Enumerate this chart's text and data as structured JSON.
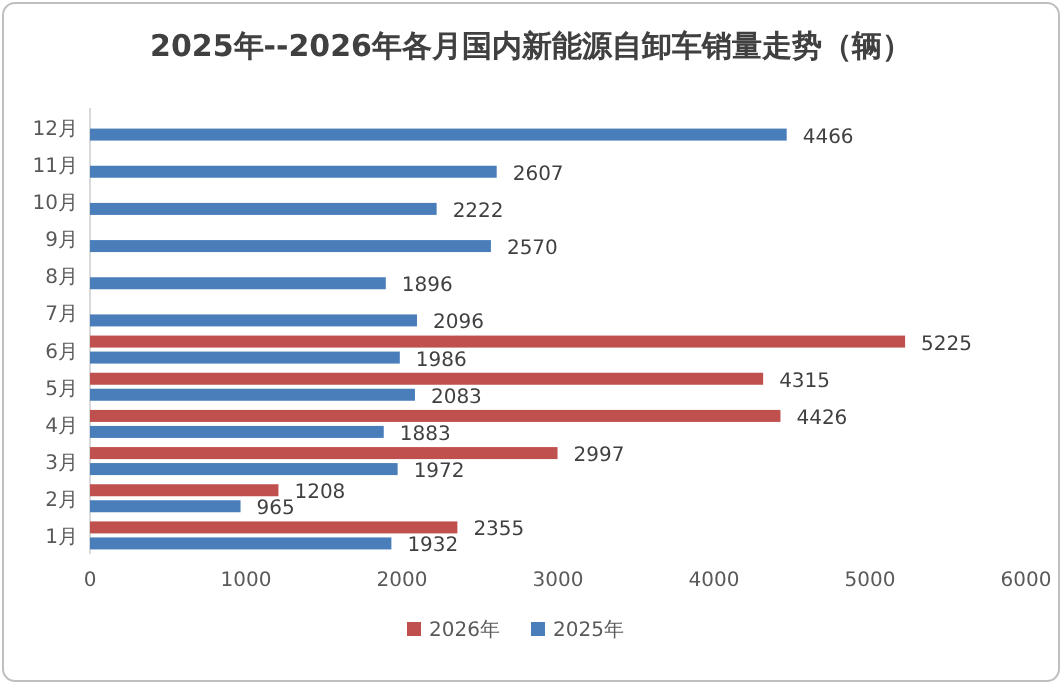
{
  "chart_data": {
    "type": "bar",
    "orientation": "horizontal",
    "title": "2025年--2026年各月国内新能源自卸车销量走势（辆）",
    "categories": [
      "12月",
      "11月",
      "10月",
      "9月",
      "8月",
      "7月",
      "6月",
      "5月",
      "4月",
      "3月",
      "2月",
      "1月"
    ],
    "series": [
      {
        "name": "2026年",
        "color": "#c0504d",
        "values": [
          null,
          null,
          null,
          null,
          null,
          null,
          5225,
          4315,
          4426,
          2997,
          1208,
          2355
        ]
      },
      {
        "name": "2025年",
        "color": "#4a7ebb",
        "values": [
          4466,
          2607,
          2222,
          2570,
          1896,
          2096,
          1986,
          2083,
          1883,
          1972,
          965,
          1932
        ]
      }
    ],
    "xlim": [
      0,
      6000
    ],
    "xticks": [
      0,
      1000,
      2000,
      3000,
      4000,
      5000,
      6000
    ],
    "data_labels": true,
    "legend": "bottom"
  }
}
